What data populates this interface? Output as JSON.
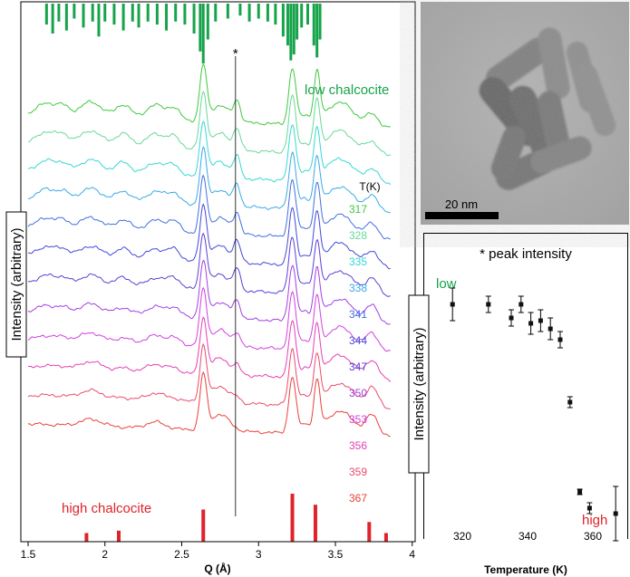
{
  "chart_data": [
    {
      "type": "line",
      "xlabel": "Q (Å)",
      "ylabel": "Intensity (arbitrary)",
      "xlim": [
        1.45,
        4.0
      ],
      "xticks": [
        "1.5",
        "2",
        "2.5",
        "3",
        "3.5",
        "4"
      ],
      "xtick_values": [
        1.5,
        2.0,
        2.5,
        3.0,
        3.5,
        4.0
      ],
      "temperature_header": "T(K)",
      "temperatures": [
        "317",
        "328",
        "335",
        "338",
        "341",
        "344",
        "347",
        "350",
        "353",
        "356",
        "359",
        "367"
      ],
      "series_colors": [
        "#3ec93e",
        "#66d999",
        "#37d6d6",
        "#3aa9e6",
        "#3f6fe0",
        "#4148d8",
        "#5a3fd8",
        "#a23fe0",
        "#d23fe0",
        "#e43fb5",
        "#ec4a6a",
        "#e8413a"
      ],
      "star_marker": "*",
      "star_q": 2.85,
      "low_label": "low chalcocite",
      "low_color": "#16a34a",
      "high_label": "high chalcocite",
      "high_color": "#e0222a",
      "low_ref_peaks": [
        {
          "q": 1.62,
          "h": 0.35
        },
        {
          "q": 1.66,
          "h": 0.5
        },
        {
          "q": 1.7,
          "h": 0.3
        },
        {
          "q": 1.75,
          "h": 0.45
        },
        {
          "q": 1.8,
          "h": 0.25
        },
        {
          "q": 1.86,
          "h": 0.4
        },
        {
          "q": 1.92,
          "h": 0.3
        },
        {
          "q": 1.96,
          "h": 0.55
        },
        {
          "q": 2.0,
          "h": 0.3
        },
        {
          "q": 2.06,
          "h": 0.35
        },
        {
          "q": 2.12,
          "h": 0.45
        },
        {
          "q": 2.18,
          "h": 0.3
        },
        {
          "q": 2.22,
          "h": 0.4
        },
        {
          "q": 2.28,
          "h": 0.3
        },
        {
          "q": 2.34,
          "h": 0.35
        },
        {
          "q": 2.4,
          "h": 0.45
        },
        {
          "q": 2.46,
          "h": 0.3
        },
        {
          "q": 2.52,
          "h": 0.35
        },
        {
          "q": 2.58,
          "h": 0.5
        },
        {
          "q": 2.62,
          "h": 0.8
        },
        {
          "q": 2.64,
          "h": 1.0
        },
        {
          "q": 2.67,
          "h": 0.6
        },
        {
          "q": 2.72,
          "h": 0.3
        },
        {
          "q": 2.8,
          "h": 0.25
        },
        {
          "q": 2.88,
          "h": 0.2
        },
        {
          "q": 2.94,
          "h": 0.3
        },
        {
          "q": 3.0,
          "h": 0.25
        },
        {
          "q": 3.06,
          "h": 0.3
        },
        {
          "q": 3.11,
          "h": 0.35
        },
        {
          "q": 3.16,
          "h": 0.55
        },
        {
          "q": 3.19,
          "h": 0.7
        },
        {
          "q": 3.21,
          "h": 0.95
        },
        {
          "q": 3.23,
          "h": 0.85
        },
        {
          "q": 3.25,
          "h": 0.6
        },
        {
          "q": 3.28,
          "h": 0.4
        },
        {
          "q": 3.32,
          "h": 0.35
        },
        {
          "q": 3.36,
          "h": 0.7
        },
        {
          "q": 3.38,
          "h": 0.9
        },
        {
          "q": 3.4,
          "h": 0.6
        }
      ],
      "high_ref_peaks": [
        {
          "q": 1.88,
          "h": 0.18
        },
        {
          "q": 2.09,
          "h": 0.23
        },
        {
          "q": 2.64,
          "h": 0.67
        },
        {
          "q": 3.22,
          "h": 1.0
        },
        {
          "q": 3.37,
          "h": 0.77
        },
        {
          "q": 3.72,
          "h": 0.41
        },
        {
          "q": 3.83,
          "h": 0.18
        }
      ],
      "peak_positions": [
        1.62,
        1.91,
        2.12,
        2.33,
        2.64,
        2.86,
        3.22,
        3.38
      ]
    },
    {
      "type": "scatter",
      "title": "* peak intensity",
      "xlabel": "Temperature (K)",
      "ylabel": "Intensity (arbitrary)",
      "xlim": [
        310,
        369
      ],
      "xticks": [
        "320",
        "340",
        "360"
      ],
      "xtick_values": [
        320,
        340,
        360
      ],
      "ylim": [
        0,
        1
      ],
      "low_label": "low",
      "high_label": "high",
      "points": [
        {
          "x": 317,
          "y": 0.84,
          "err": 0.06
        },
        {
          "x": 328,
          "y": 0.84,
          "err": 0.03
        },
        {
          "x": 335,
          "y": 0.79,
          "err": 0.03
        },
        {
          "x": 338,
          "y": 0.84,
          "err": 0.03
        },
        {
          "x": 341,
          "y": 0.77,
          "err": 0.04
        },
        {
          "x": 344,
          "y": 0.78,
          "err": 0.04
        },
        {
          "x": 347,
          "y": 0.75,
          "err": 0.04
        },
        {
          "x": 350,
          "y": 0.71,
          "err": 0.03
        },
        {
          "x": 353,
          "y": 0.48,
          "err": 0.02
        },
        {
          "x": 356,
          "y": 0.15,
          "err": 0.01
        },
        {
          "x": 359,
          "y": 0.09,
          "err": 0.02
        },
        {
          "x": 367,
          "y": 0.07,
          "err": 0.1
        }
      ]
    }
  ],
  "micrograph": {
    "scale_label": "20 nm"
  }
}
